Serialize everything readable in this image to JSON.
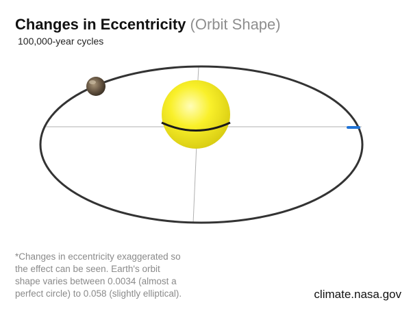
{
  "title": {
    "main": "Changes in Eccentricity",
    "sub": "(Orbit Shape)"
  },
  "subtitle": "100,000-year cycles",
  "footnote": {
    "line1": "*Changes in eccentricity exaggerated so",
    "line2": "the effect can be seen. Earth's orbit",
    "line3": "shape varies between 0.0034 (almost a",
    "line4": "perfect circle) to 0.058 (slightly elliptical)."
  },
  "credit": "climate.nasa.gov",
  "colors": {
    "sun": "#f7ee1c",
    "orbit": "#333333",
    "axes": "#b0b0b0",
    "marker": "#1f73d6",
    "earth": "#6b5a45"
  }
}
